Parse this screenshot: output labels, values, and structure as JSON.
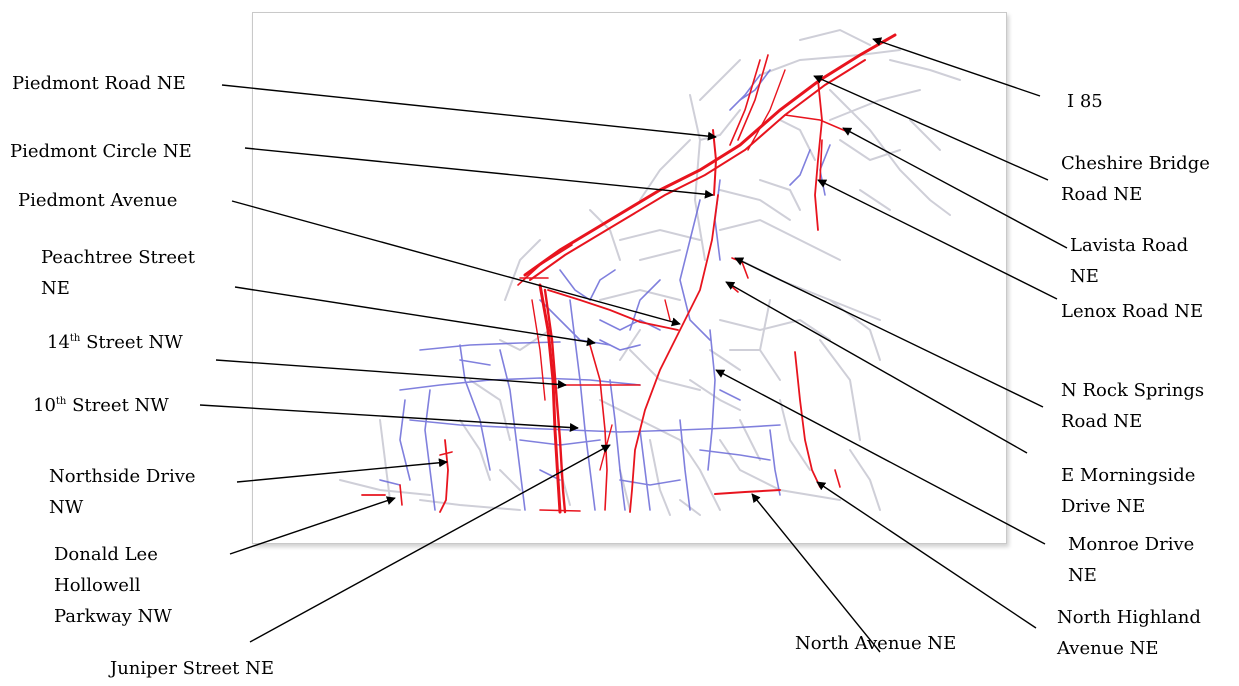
{
  "colors": {
    "major_road": "#e8141e",
    "minor_road": "#6a6ad8",
    "background_road": "#cfcfd8",
    "callout": "#000000"
  },
  "labels": [
    {
      "id": "piedmont-road-ne",
      "text": "Piedmont Road NE"
    },
    {
      "id": "piedmont-circle-ne",
      "text": "Piedmont Circle NE"
    },
    {
      "id": "piedmont-avenue",
      "text": "Piedmont Avenue"
    },
    {
      "id": "peachtree-street-ne",
      "text": "Peachtree Street\nNE"
    },
    {
      "id": "14th-street-nw",
      "num": "14",
      "sup": "th",
      "text": " Street NW"
    },
    {
      "id": "10th-street-nw",
      "num": "10",
      "sup": "th",
      "text": " Street NW"
    },
    {
      "id": "northside-drive-nw",
      "text": "Northside Drive\nNW"
    },
    {
      "id": "donald-lee-hollowell-parkway-nw",
      "text": "Donald Lee\nHollowell\nParkway NW"
    },
    {
      "id": "juniper-street-ne",
      "text": "Juniper Street NE"
    },
    {
      "id": "i-85",
      "text": "I 85"
    },
    {
      "id": "cheshire-bridge-road-ne",
      "text": "Cheshire Bridge\nRoad NE"
    },
    {
      "id": "lavista-road-ne",
      "text": "Lavista Road\nNE"
    },
    {
      "id": "lenox-road-ne",
      "text": "Lenox Road NE"
    },
    {
      "id": "n-rock-springs-road-ne",
      "text": "N Rock Springs\nRoad NE"
    },
    {
      "id": "e-morningside-drive-ne",
      "text": "E Morningside\nDrive NE"
    },
    {
      "id": "monroe-drive-ne",
      "text": "Monroe Drive\nNE"
    },
    {
      "id": "north-highland-avenue-ne",
      "text": "North Highland\nAvenue NE"
    },
    {
      "id": "north-avenue-ne",
      "text": "North Avenue NE"
    }
  ]
}
